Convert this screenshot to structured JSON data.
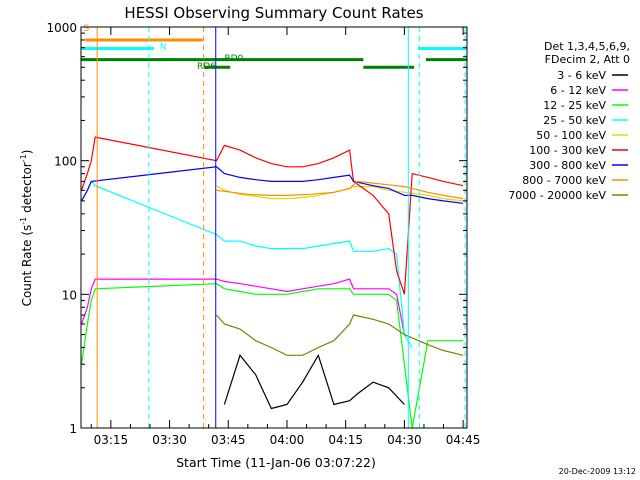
{
  "chart_data": {
    "type": "line",
    "title": "HESSI Observing Summary Count Rates",
    "xlabel": "Start Time (11-Jan-06 03:07:22)",
    "ylabel_main": "Count Rate (s",
    "ylabel_sup1": "-1",
    "ylabel_mid": " detector",
    "ylabel_sup2": "-1",
    "ylabel_end": ")",
    "ylim": [
      1,
      1000
    ],
    "yscale": "log",
    "xlim_minutes": [
      187.37,
      286.0
    ],
    "x_ticks": [
      {
        "minutes": 195,
        "label": "03:15"
      },
      {
        "minutes": 210,
        "label": "03:30"
      },
      {
        "minutes": 225,
        "label": "03:45"
      },
      {
        "minutes": 240,
        "label": "04:00"
      },
      {
        "minutes": 255,
        "label": "04:15"
      },
      {
        "minutes": 270,
        "label": "04:30"
      },
      {
        "minutes": 285,
        "label": "04:45"
      }
    ],
    "y_ticks": [
      {
        "value": 1,
        "label": "1"
      },
      {
        "value": 10,
        "label": "10"
      },
      {
        "value": 100,
        "label": "100"
      },
      {
        "value": 1000,
        "label": "1000"
      }
    ],
    "legend_header": [
      "Det 1,3,4,5,6,9,",
      "FDecim 2, Att 0"
    ],
    "series": [
      {
        "name": "3 - 6 keV",
        "color": "#000000",
        "x": [
          191,
          222,
          224,
          228,
          232,
          236,
          240,
          244,
          248,
          252,
          256,
          258,
          262,
          266,
          270
        ],
        "y": [
          0,
          0,
          1.5,
          3.5,
          2.5,
          1.4,
          1.5,
          2.2,
          3.5,
          1.5,
          1.6,
          1.8,
          2.2,
          2.0,
          1.5
        ]
      },
      {
        "name": "6 - 12 keV",
        "color": "#ff00ff",
        "x": [
          187.5,
          189,
          190,
          191,
          222,
          224,
          228,
          232,
          236,
          240,
          244,
          248,
          252,
          256,
          257,
          262,
          266,
          268,
          270
        ],
        "y": [
          6,
          8,
          11,
          13,
          13,
          12.5,
          12,
          11.5,
          11,
          10.5,
          11,
          11.5,
          12,
          13,
          11,
          11,
          11,
          10,
          5
        ]
      },
      {
        "name": "12 - 25 keV",
        "color": "#00ff00",
        "x": [
          187.5,
          189,
          190,
          191,
          222,
          224,
          228,
          232,
          236,
          240,
          244,
          248,
          252,
          256,
          257,
          262,
          266,
          268,
          272,
          276,
          280,
          285
        ],
        "y": [
          3,
          6,
          9,
          11,
          12,
          11,
          10.5,
          10,
          10,
          10,
          10.5,
          11,
          11,
          11,
          10,
          10,
          10,
          9,
          1,
          4.5,
          4.5,
          4.5
        ]
      },
      {
        "name": "25 - 50 keV",
        "color": "#00ffff",
        "x": [
          187.5,
          189,
          190,
          191,
          222,
          224,
          228,
          232,
          236,
          240,
          244,
          248,
          252,
          256,
          257,
          262,
          266,
          268,
          270,
          272
        ],
        "y": [
          50,
          60,
          70,
          65,
          28,
          25,
          25,
          23,
          22,
          22,
          22,
          23,
          24,
          25,
          21,
          21,
          22,
          20,
          5,
          4
        ]
      },
      {
        "name": "50 - 100 keV",
        "color": "#dddd00",
        "x": [
          222,
          224,
          228,
          232,
          236,
          240,
          244,
          248,
          252,
          256,
          257,
          262,
          266,
          270,
          276,
          280,
          285
        ],
        "y": [
          65,
          60,
          56,
          54,
          52,
          52,
          53,
          55,
          58,
          62,
          64,
          64,
          60,
          58,
          55,
          52,
          50
        ]
      },
      {
        "name": "100 - 300 keV",
        "color": "#ff0000",
        "x": [
          187.5,
          189,
          190,
          191,
          222,
          224,
          228,
          232,
          236,
          240,
          244,
          248,
          252,
          256,
          257,
          262,
          266,
          268,
          270,
          272,
          276,
          280,
          285
        ],
        "y": [
          60,
          80,
          100,
          150,
          100,
          130,
          120,
          105,
          95,
          90,
          90,
          95,
          105,
          120,
          70,
          55,
          40,
          15,
          10,
          80,
          75,
          70,
          65
        ]
      },
      {
        "name": "300 - 800 keV",
        "color": "#0000ff",
        "x": [
          187.5,
          189,
          190,
          222,
          224,
          228,
          232,
          236,
          240,
          244,
          248,
          252,
          256,
          257,
          262,
          266,
          270,
          272,
          276,
          280,
          285
        ],
        "y": [
          50,
          60,
          70,
          90,
          80,
          75,
          72,
          70,
          70,
          70,
          72,
          75,
          78,
          70,
          65,
          62,
          55,
          55,
          52,
          50,
          48
        ]
      },
      {
        "name": "800 - 7000 keV",
        "color": "#ff8c00",
        "x": [
          222,
          226,
          230,
          236,
          240,
          246,
          252,
          256,
          258,
          262,
          266,
          270,
          272,
          276,
          280,
          285
        ],
        "y": [
          60,
          58,
          56,
          55,
          55,
          56,
          58,
          62,
          70,
          68,
          66,
          64,
          62,
          58,
          55,
          52
        ]
      },
      {
        "name": "7000 - 20000 keV",
        "color": "#808000",
        "x": [
          222,
          224,
          228,
          232,
          236,
          240,
          244,
          248,
          252,
          256,
          257,
          262,
          266,
          270,
          276,
          280,
          285
        ],
        "y": [
          7,
          6,
          5.5,
          4.5,
          4,
          3.5,
          3.5,
          4,
          4.5,
          6,
          7,
          6.5,
          6,
          5,
          4.2,
          3.8,
          3.5
        ]
      }
    ],
    "annotations": [
      {
        "text": "S",
        "color": "#ff8c00",
        "minutes": 188.0,
        "y": 1000
      },
      {
        "text": "N",
        "color": "#00ffff",
        "minutes": 207.5,
        "y": 730
      },
      {
        "text": "RD0",
        "color": "#008000",
        "minutes": 224.0,
        "y": 595
      },
      {
        "text": "RD6",
        "color": "#008000",
        "minutes": 217.0,
        "y": 520
      }
    ],
    "bars": [
      {
        "color": "#ff8c00",
        "y": 800,
        "segments": [
          [
            188.5,
            218.5
          ]
        ]
      },
      {
        "color": "#00ffff",
        "y": 690,
        "segments": [
          [
            187.4,
            206.0
          ],
          [
            273.5,
            286.0
          ]
        ]
      },
      {
        "color": "#008000",
        "y": 570,
        "segments": [
          [
            187.4,
            259.5
          ],
          [
            275.5,
            286.0
          ]
        ]
      },
      {
        "color": "#008000",
        "y": 500,
        "segments": [
          [
            219.0,
            225.5
          ],
          [
            259.5,
            272.5
          ]
        ]
      }
    ],
    "vlines": [
      {
        "color": "#ff8c00",
        "style": "solid",
        "minutes": 191.5
      },
      {
        "color": "#00ffff",
        "style": "dashed",
        "minutes": 204.7
      },
      {
        "color": "#ff8c00",
        "style": "dashed",
        "minutes": 218.7
      },
      {
        "color": "#0000ff",
        "style": "solid",
        "minutes": 221.8
      },
      {
        "color": "#00ffff",
        "style": "solid",
        "minutes": 271.0
      },
      {
        "color": "#00ffff",
        "style": "dashed",
        "minutes": 273.8
      },
      {
        "color": "#00ffff",
        "style": "dashed",
        "minutes": 285.5
      }
    ]
  },
  "footer": {
    "timestamp": "20-Dec-2009 13:12"
  }
}
